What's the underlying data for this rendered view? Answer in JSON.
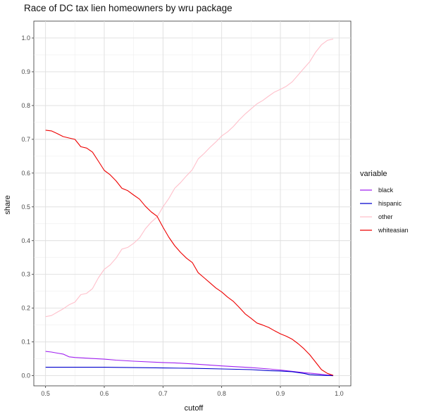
{
  "chart_data": {
    "type": "line",
    "title": "Race of DC tax lien homeowners by wru package",
    "xlabel": "cutoff",
    "ylabel": "share",
    "xlim": [
      0.48,
      1.02
    ],
    "ylim": [
      -0.03,
      1.05
    ],
    "x_ticks": [
      "0.5",
      "0.6",
      "0.7",
      "0.8",
      "0.9",
      "1.0"
    ],
    "y_ticks": [
      "0.0",
      "0.1",
      "0.2",
      "0.3",
      "0.4",
      "0.5",
      "0.6",
      "0.7",
      "0.8",
      "0.9",
      "1.0"
    ],
    "grid": true,
    "legend": {
      "title": "variable",
      "position": "right"
    },
    "series": [
      {
        "name": "black",
        "color": "#a020f0",
        "points": [
          [
            0.5,
            0.072
          ],
          [
            0.51,
            0.07
          ],
          [
            0.52,
            0.067
          ],
          [
            0.53,
            0.064
          ],
          [
            0.54,
            0.056
          ],
          [
            0.55,
            0.054
          ],
          [
            0.57,
            0.052
          ],
          [
            0.6,
            0.049
          ],
          [
            0.62,
            0.046
          ],
          [
            0.65,
            0.043
          ],
          [
            0.7,
            0.039
          ],
          [
            0.72,
            0.038
          ],
          [
            0.75,
            0.035
          ],
          [
            0.8,
            0.029
          ],
          [
            0.85,
            0.024
          ],
          [
            0.88,
            0.02
          ],
          [
            0.9,
            0.017
          ],
          [
            0.92,
            0.013
          ],
          [
            0.94,
            0.009
          ],
          [
            0.96,
            0.006
          ],
          [
            0.98,
            0.002
          ],
          [
            0.99,
            0.001
          ]
        ]
      },
      {
        "name": "hispanic",
        "color": "#0000cd",
        "points": [
          [
            0.5,
            0.025
          ],
          [
            0.6,
            0.025
          ],
          [
            0.65,
            0.024
          ],
          [
            0.7,
            0.023
          ],
          [
            0.75,
            0.022
          ],
          [
            0.8,
            0.02
          ],
          [
            0.85,
            0.018
          ],
          [
            0.88,
            0.015
          ],
          [
            0.9,
            0.014
          ],
          [
            0.92,
            0.012
          ],
          [
            0.94,
            0.007
          ],
          [
            0.95,
            0.003
          ],
          [
            0.97,
            0.001
          ],
          [
            0.99,
            0.0
          ]
        ]
      },
      {
        "name": "other",
        "color": "#ffc0cb",
        "points": [
          [
            0.5,
            0.175
          ],
          [
            0.51,
            0.178
          ],
          [
            0.52,
            0.188
          ],
          [
            0.53,
            0.198
          ],
          [
            0.54,
            0.21
          ],
          [
            0.55,
            0.218
          ],
          [
            0.56,
            0.24
          ],
          [
            0.57,
            0.244
          ],
          [
            0.58,
            0.258
          ],
          [
            0.59,
            0.29
          ],
          [
            0.6,
            0.315
          ],
          [
            0.61,
            0.328
          ],
          [
            0.62,
            0.348
          ],
          [
            0.63,
            0.375
          ],
          [
            0.64,
            0.38
          ],
          [
            0.65,
            0.392
          ],
          [
            0.66,
            0.408
          ],
          [
            0.67,
            0.435
          ],
          [
            0.68,
            0.455
          ],
          [
            0.69,
            0.47
          ],
          [
            0.7,
            0.5
          ],
          [
            0.71,
            0.525
          ],
          [
            0.72,
            0.555
          ],
          [
            0.73,
            0.572
          ],
          [
            0.74,
            0.592
          ],
          [
            0.75,
            0.61
          ],
          [
            0.76,
            0.642
          ],
          [
            0.77,
            0.658
          ],
          [
            0.78,
            0.676
          ],
          [
            0.79,
            0.692
          ],
          [
            0.8,
            0.71
          ],
          [
            0.81,
            0.722
          ],
          [
            0.82,
            0.738
          ],
          [
            0.83,
            0.758
          ],
          [
            0.84,
            0.775
          ],
          [
            0.85,
            0.79
          ],
          [
            0.86,
            0.805
          ],
          [
            0.87,
            0.815
          ],
          [
            0.88,
            0.828
          ],
          [
            0.89,
            0.84
          ],
          [
            0.9,
            0.848
          ],
          [
            0.91,
            0.857
          ],
          [
            0.92,
            0.87
          ],
          [
            0.93,
            0.89
          ],
          [
            0.94,
            0.91
          ],
          [
            0.95,
            0.93
          ],
          [
            0.96,
            0.958
          ],
          [
            0.97,
            0.98
          ],
          [
            0.98,
            0.993
          ],
          [
            0.99,
            0.997
          ]
        ]
      },
      {
        "name": "whiteasian",
        "color": "#ee0000",
        "points": [
          [
            0.5,
            0.727
          ],
          [
            0.51,
            0.725
          ],
          [
            0.52,
            0.717
          ],
          [
            0.53,
            0.708
          ],
          [
            0.54,
            0.704
          ],
          [
            0.55,
            0.7
          ],
          [
            0.56,
            0.678
          ],
          [
            0.57,
            0.674
          ],
          [
            0.58,
            0.662
          ],
          [
            0.59,
            0.635
          ],
          [
            0.6,
            0.608
          ],
          [
            0.61,
            0.595
          ],
          [
            0.62,
            0.577
          ],
          [
            0.63,
            0.555
          ],
          [
            0.64,
            0.548
          ],
          [
            0.65,
            0.535
          ],
          [
            0.66,
            0.523
          ],
          [
            0.67,
            0.502
          ],
          [
            0.68,
            0.485
          ],
          [
            0.69,
            0.472
          ],
          [
            0.7,
            0.44
          ],
          [
            0.71,
            0.41
          ],
          [
            0.72,
            0.385
          ],
          [
            0.73,
            0.365
          ],
          [
            0.74,
            0.348
          ],
          [
            0.75,
            0.335
          ],
          [
            0.76,
            0.305
          ],
          [
            0.77,
            0.29
          ],
          [
            0.78,
            0.275
          ],
          [
            0.79,
            0.26
          ],
          [
            0.8,
            0.248
          ],
          [
            0.81,
            0.233
          ],
          [
            0.82,
            0.22
          ],
          [
            0.83,
            0.202
          ],
          [
            0.84,
            0.183
          ],
          [
            0.85,
            0.17
          ],
          [
            0.86,
            0.156
          ],
          [
            0.87,
            0.15
          ],
          [
            0.88,
            0.143
          ],
          [
            0.89,
            0.133
          ],
          [
            0.9,
            0.124
          ],
          [
            0.91,
            0.117
          ],
          [
            0.92,
            0.108
          ],
          [
            0.93,
            0.095
          ],
          [
            0.94,
            0.08
          ],
          [
            0.95,
            0.062
          ],
          [
            0.96,
            0.04
          ],
          [
            0.97,
            0.018
          ],
          [
            0.98,
            0.007
          ],
          [
            0.99,
            0.001
          ]
        ]
      }
    ]
  }
}
